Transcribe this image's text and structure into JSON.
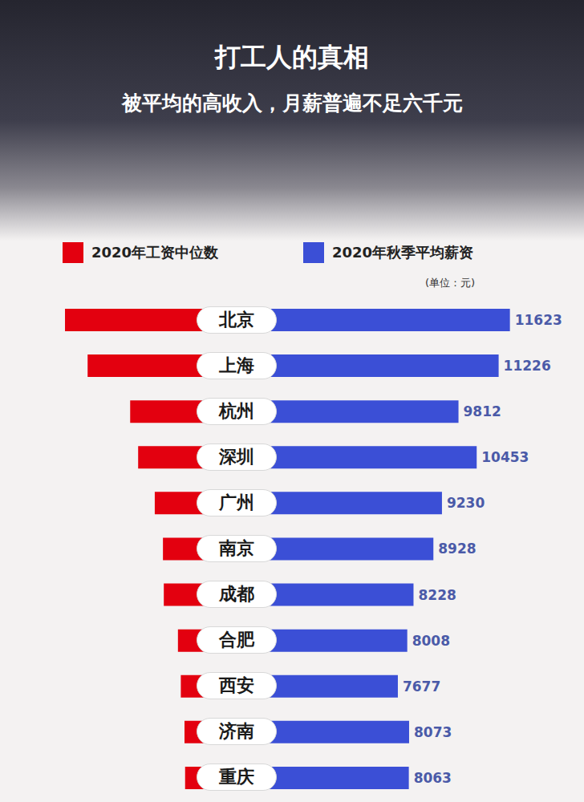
{
  "chart_data": {
    "type": "bar",
    "orientation": "horizontal",
    "title": "打工人的真相",
    "subtitle": "被平均的高收入，月薪普遍不足六千元",
    "annotations": [
      "(单位：元)"
    ],
    "categories": [
      "北京",
      "上海",
      "杭州",
      "深圳",
      "广州",
      "南京",
      "成都",
      "合肥",
      "西安",
      "济南",
      "重庆"
    ],
    "series": [
      {
        "name": "2020年工资中位数",
        "color": "#e3000f",
        "values": [
          6906,
          6378,
          5385,
          5199,
          4811,
          4620,
          4600,
          4270,
          4203,
          4117,
          4103
        ]
      },
      {
        "name": "2020年秋季平均薪资",
        "color": "#3b4fd6",
        "axis": "y2",
        "values": [
          11623,
          11226,
          9812,
          10453,
          9230,
          8928,
          8228,
          8008,
          7677,
          8073,
          8063
        ]
      }
    ],
    "ylim": [
      2900,
      7000
    ],
    "y2lim": [
      2000,
      12000
    ],
    "data_labels": true,
    "tick_labels": false,
    "grid": false,
    "legend": "top"
  }
}
